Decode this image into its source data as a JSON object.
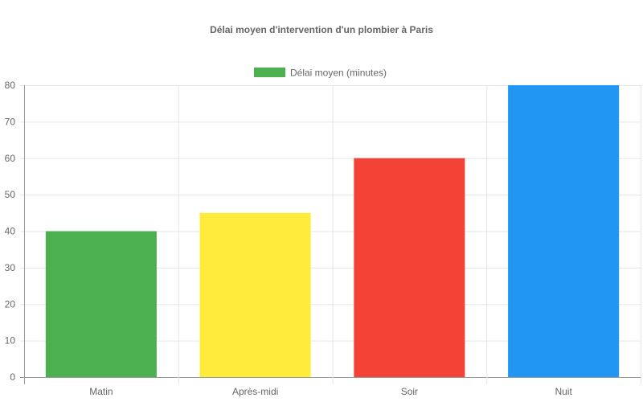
{
  "chart_data": {
    "type": "bar",
    "title": "Délai moyen d'intervention d'un plombier à Paris",
    "categories": [
      "Matin",
      "Après-midi",
      "Soir",
      "Nuit"
    ],
    "series": [
      {
        "name": "Délai moyen (minutes)",
        "values": [
          40,
          45,
          60,
          80
        ],
        "colors": [
          "#4CAF50",
          "#FFEB3B",
          "#F44336",
          "#2196F3"
        ]
      }
    ],
    "legend_color": "#4CAF50",
    "ylim": [
      0,
      80
    ],
    "yticks": [
      0,
      10,
      20,
      30,
      40,
      50,
      60,
      70,
      80
    ],
    "grid": true,
    "legend_position": "top"
  }
}
